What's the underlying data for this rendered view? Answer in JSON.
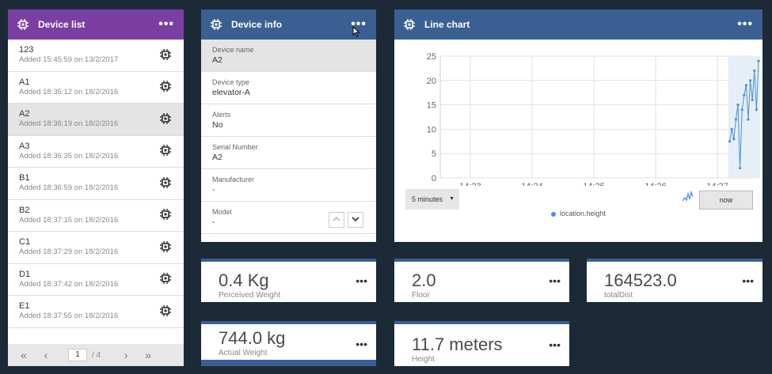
{
  "device_list": {
    "title": "Device list",
    "menu_icon": "more-icon",
    "items": [
      {
        "name": "123",
        "added": "Added 15:45:59 on 13/2/2017",
        "selected": false
      },
      {
        "name": "A1",
        "added": "Added 18:35:12 on 18/2/2016",
        "selected": false
      },
      {
        "name": "A2",
        "added": "Added 18:36:19 on 18/2/2016",
        "selected": true
      },
      {
        "name": "A3",
        "added": "Added 18:36:35 on 18/2/2016",
        "selected": false
      },
      {
        "name": "B1",
        "added": "Added 18:36:59 on 18/2/2016",
        "selected": false
      },
      {
        "name": "B2",
        "added": "Added 18:37:15 on 18/2/2016",
        "selected": false
      },
      {
        "name": "C1",
        "added": "Added 18:37:29 on 18/2/2016",
        "selected": false
      },
      {
        "name": "D1",
        "added": "Added 18:37:42 on 18/2/2016",
        "selected": false
      },
      {
        "name": "E1",
        "added": "Added 18:37:55 on 18/2/2016",
        "selected": false
      }
    ],
    "pager": {
      "first": "«",
      "prev": "‹",
      "page": "1",
      "of": "/ 4",
      "next": "›",
      "last": "»"
    }
  },
  "device_info": {
    "title": "Device info",
    "fields": [
      {
        "label": "Device name",
        "value": "A2"
      },
      {
        "label": "Device type",
        "value": "elevator-A"
      },
      {
        "label": "Alerts",
        "value": "No"
      },
      {
        "label": "Serial Number",
        "value": "A2"
      },
      {
        "label": "Manufacturer",
        "value": "-"
      },
      {
        "label": "Model",
        "value": "-"
      }
    ],
    "scroll_up": "^",
    "scroll_down": "v"
  },
  "line_chart": {
    "title": "Line chart",
    "range_select": "5 minutes",
    "now_button": "now",
    "legend": "location.height",
    "chart_data": {
      "type": "line",
      "title": "",
      "xlabel": "",
      "ylabel": "",
      "x_ticks": [
        "14:23",
        "14:24",
        "14:25",
        "14:26",
        "14:27"
      ],
      "y_ticks": [
        0,
        5,
        10,
        15,
        20,
        25
      ],
      "ylim": [
        0,
        25
      ],
      "series": [
        {
          "name": "location.height",
          "color": "#4a90d9",
          "x": [
            "14:27:12",
            "14:27:14",
            "14:27:16",
            "14:27:18",
            "14:27:20",
            "14:27:22",
            "14:27:24",
            "14:27:26",
            "14:27:28",
            "14:27:30",
            "14:27:32",
            "14:27:34",
            "14:27:36",
            "14:27:38",
            "14:27:40"
          ],
          "values": [
            7.5,
            10,
            8,
            12,
            15,
            2,
            14,
            17,
            19,
            12,
            20,
            16,
            22,
            14,
            24
          ]
        }
      ],
      "grid": true
    }
  },
  "metrics": {
    "perceived_weight": {
      "value": "0.4 Kg",
      "label": "Perceived Weight"
    },
    "floor": {
      "value": "2.0",
      "label": "Floor"
    },
    "total_dist": {
      "value": "164523.0",
      "label": "totalDist"
    },
    "actual_weight": {
      "value": "744.0 kg",
      "label": "Actual Weight"
    },
    "height": {
      "value": "11.7 meters",
      "label": "Height"
    }
  },
  "colors": {
    "background": "#1c2a38",
    "device_list_header": "#7b3fa3",
    "card_header": "#3a5f92",
    "series": "#4a90d9"
  }
}
